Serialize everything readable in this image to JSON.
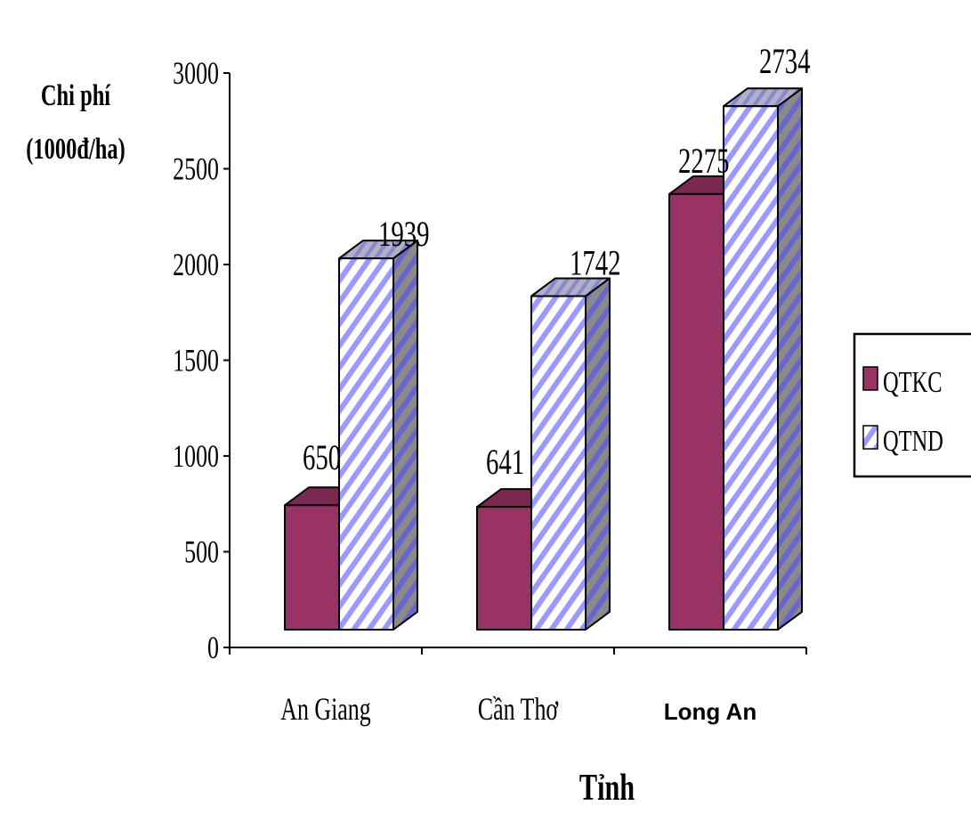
{
  "chart_data": {
    "type": "bar",
    "style": "3d-clustered",
    "ylabel_line1": "Chi phí",
    "ylabel_line2": "(1000đ/ha)",
    "xlabel": "Tỉnh",
    "ylim": [
      0,
      3000
    ],
    "yticks": [
      0,
      500,
      1000,
      1500,
      2000,
      2500,
      3000
    ],
    "categories": [
      "An Giang",
      "Cần Thơ",
      "Long An"
    ],
    "series": [
      {
        "name": "QTKC",
        "values": [
          650,
          641,
          2275
        ],
        "color": "#993366",
        "pattern": "solid"
      },
      {
        "name": "QTND",
        "values": [
          1939,
          1742,
          2734
        ],
        "color": "#9999ff",
        "pattern": "diagonal-stripes"
      }
    ],
    "legend": {
      "position": "right",
      "labels": [
        "QTKC",
        "QTND"
      ]
    },
    "grid": false
  }
}
